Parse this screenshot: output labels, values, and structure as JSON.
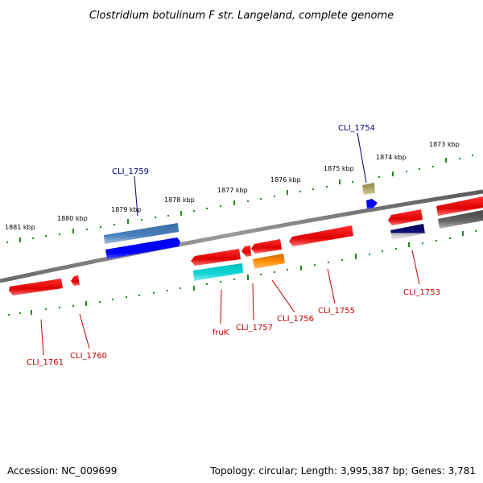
{
  "title": "Clostridium botulinum F str. Langeland, complete genome",
  "footer": {
    "accession": "Accession: NC_009699",
    "topology": "Topology: circular; Length: 3,995,387 bp; Genes: 3,781"
  },
  "colors": {
    "backbone": "#808080",
    "tick": "#1e8a1e",
    "label_forward": "#00007f",
    "label_reverse": "#c40000"
  },
  "ruler": [
    {
      "label": "1881 kbp",
      "kbp": 1881
    },
    {
      "label": "1880 kbp",
      "kbp": 1880
    },
    {
      "label": "1879 kbp",
      "kbp": 1879
    },
    {
      "label": "1878 kbp",
      "kbp": 1878
    },
    {
      "label": "1877 kbp",
      "kbp": 1877
    },
    {
      "label": "1876 kbp",
      "kbp": 1876
    },
    {
      "label": "1875 kbp",
      "kbp": 1875
    },
    {
      "label": "1874 kbp",
      "kbp": 1874
    },
    {
      "label": "1873 kbp",
      "kbp": 1873
    }
  ],
  "genes": [
    {
      "name": "CLI_1759",
      "strand": "+",
      "color": "#4477bb"
    },
    {
      "name": "CLI_1754",
      "strand": "+",
      "color": "#b0a060"
    },
    {
      "name": "CLI_1761",
      "strand": "-",
      "color": "#ee1111"
    },
    {
      "name": "CLI_1760",
      "strand": "-",
      "color": "#ee1111"
    },
    {
      "name": "fruK",
      "strand": "-",
      "color": "#11cccc"
    },
    {
      "name": "CLI_1757",
      "strand": "-",
      "color": "#ee1111"
    },
    {
      "name": "CLI_1756",
      "strand": "-",
      "color": "#ff8800"
    },
    {
      "name": "CLI_1755",
      "strand": "-",
      "color": "#ee1111"
    },
    {
      "name": "CLI_1753",
      "strand": "-",
      "color": "#11117a"
    }
  ]
}
